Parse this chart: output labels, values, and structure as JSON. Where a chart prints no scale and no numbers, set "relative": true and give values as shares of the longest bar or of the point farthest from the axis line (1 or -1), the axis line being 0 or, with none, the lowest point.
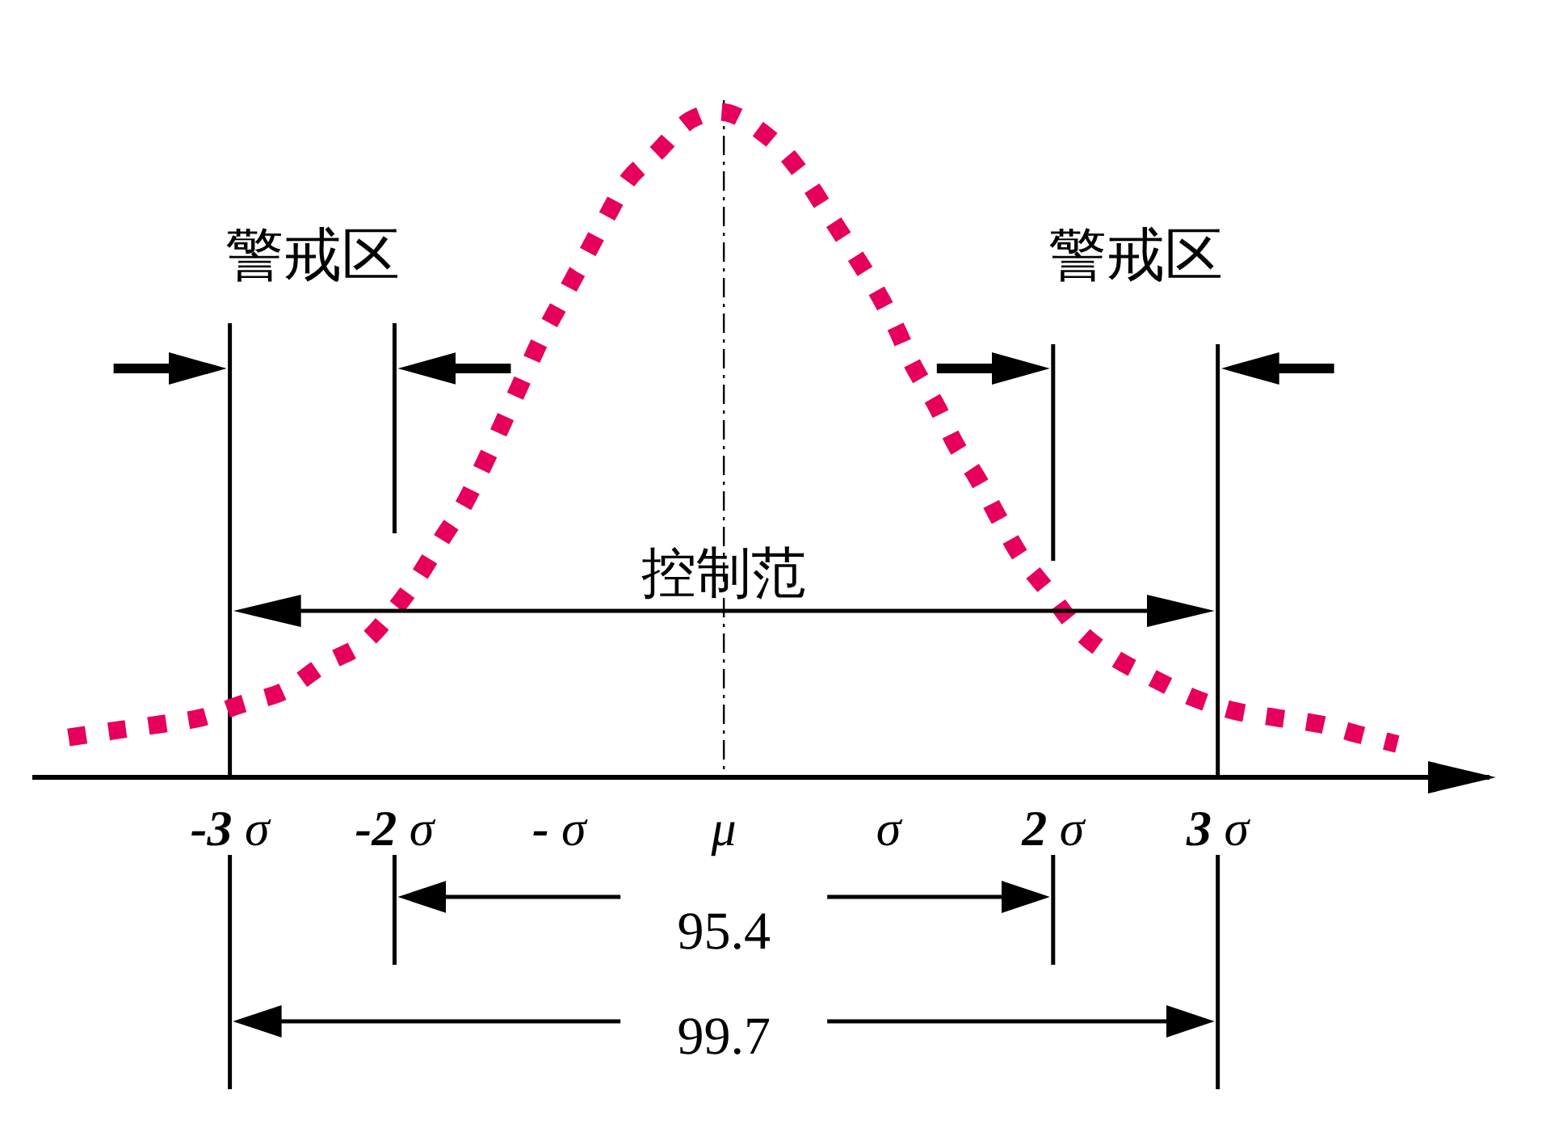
{
  "chart_data": {
    "type": "line",
    "relative": true,
    "x": [
      -3.98,
      -3.71,
      -3.42,
      -3.17,
      -2.93,
      -2.67,
      -2.43,
      -2.2,
      -2.01,
      -1.86,
      -1.71,
      -1.58,
      -1.46,
      -1.33,
      -1.22,
      -1.11,
      -0.98,
      -0.85,
      -0.72,
      -0.58,
      -0.41,
      -0.2,
      0.03,
      0.29,
      0.47,
      0.63,
      0.76,
      0.91,
      1.04,
      1.15,
      1.29,
      1.41,
      1.54,
      1.67,
      1.81,
      1.97,
      2.16,
      2.37,
      2.6,
      2.85,
      3.1,
      3.35,
      3.62,
      3.88,
      4.09
    ],
    "series": [
      {
        "color": "#e6005c",
        "line_style": "dotted",
        "values": [
          0.06,
          0.07,
          0.08,
          0.09,
          0.11,
          0.13,
          0.17,
          0.2,
          0.25,
          0.3,
          0.36,
          0.41,
          0.47,
          0.54,
          0.6,
          0.66,
          0.72,
          0.78,
          0.84,
          0.9,
          0.94,
          0.99,
          1,
          0.96,
          0.91,
          0.85,
          0.8,
          0.74,
          0.68,
          0.62,
          0.56,
          0.5,
          0.45,
          0.39,
          0.33,
          0.28,
          0.22,
          0.18,
          0.15,
          0.12,
          0.1,
          0.09,
          0.08,
          0.063,
          0.05
        ]
      }
    ],
    "xlim": [
      -4.2,
      4.65
    ],
    "xticks": [
      {
        "value": -3,
        "label": "-3 σ"
      },
      {
        "value": -2,
        "label": "-2 σ"
      },
      {
        "value": -1,
        "label": "- σ"
      },
      {
        "value": 0,
        "label": "μ"
      },
      {
        "value": 1,
        "label": "σ"
      },
      {
        "value": 2,
        "label": "2 σ"
      },
      {
        "value": 3,
        "label": "3 σ"
      }
    ],
    "ref_lines": [
      {
        "axis": "x",
        "value": -3
      },
      {
        "axis": "x",
        "value": -2
      },
      {
        "axis": "x",
        "value": 2
      },
      {
        "axis": "x",
        "value": 3
      },
      {
        "axis": "x",
        "value": 0,
        "line_style": "dashdot"
      }
    ],
    "annotations": [
      "警戒区",
      "警戒区",
      "控制范",
      "95.4",
      "99.7"
    ]
  }
}
